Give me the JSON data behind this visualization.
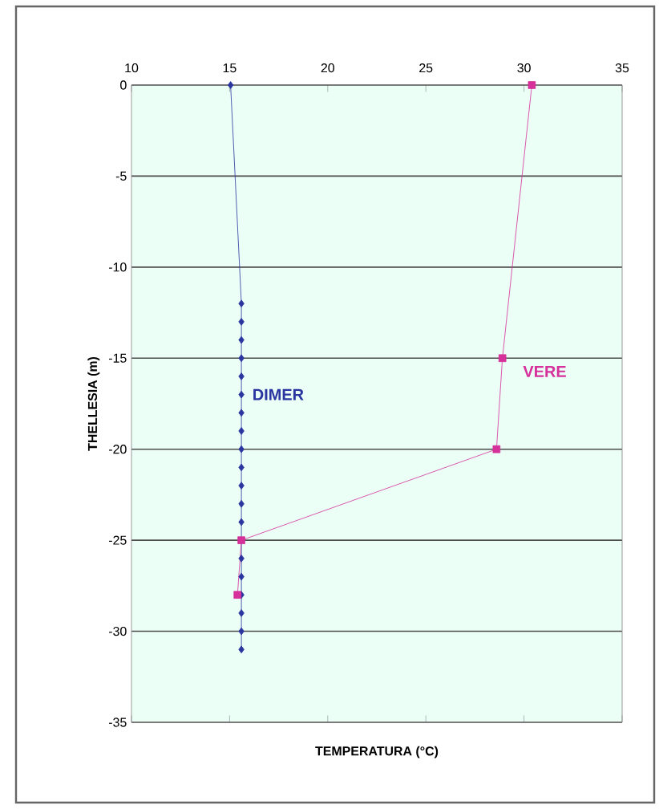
{
  "chart_data": {
    "type": "line",
    "xlabel": "TEMPERATURA (°C)",
    "ylabel": "THELLESIA (m)",
    "xlim": [
      10,
      35
    ],
    "xticks": [
      10,
      15,
      20,
      25,
      30,
      35
    ],
    "ylim": [
      -35,
      0
    ],
    "yticks": [
      -35,
      -30,
      -25,
      -20,
      -15,
      -10,
      -5,
      0
    ],
    "grid": "y",
    "series": [
      {
        "name": "DIMER",
        "color": "#2b35a0",
        "marker": "diamond",
        "x": [
          15.05,
          15.6,
          15.6,
          15.6,
          15.6,
          15.6,
          15.6,
          15.6,
          15.6,
          15.6,
          15.6,
          15.6,
          15.6,
          15.6,
          null,
          15.6,
          15.6,
          15.6,
          15.6,
          15.6,
          15.6
        ],
        "values": [
          0,
          -12,
          -13,
          -14,
          -15,
          -16,
          -17,
          -18,
          -19,
          -20,
          -21,
          -22,
          -23,
          -24,
          null,
          -26,
          -27,
          -28,
          -29,
          -30,
          -31
        ]
      },
      {
        "name": "VERE",
        "color": "#d6309a",
        "marker": "square",
        "x": [
          30.4,
          28.9,
          28.6,
          15.6,
          15.4
        ],
        "values": [
          0,
          -15,
          -20,
          -25,
          -28
        ]
      }
    ]
  }
}
